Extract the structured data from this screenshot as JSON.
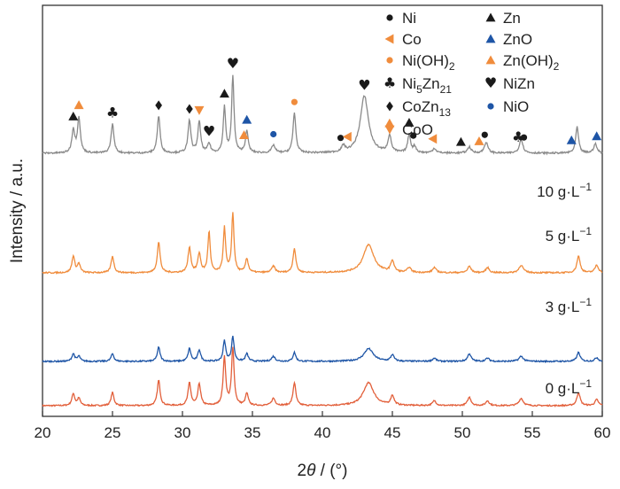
{
  "colors": {
    "black": "#1a1a1a",
    "orange": "#f08c3c",
    "blue": "#1e55a6",
    "gray": "#8a8a8a",
    "red": "#e25f3a"
  },
  "chart_data": {
    "type": "line",
    "title": "",
    "xlabel_parts": [
      "2",
      "θ",
      " / (°)"
    ],
    "ylabel": "Intensity / a.u.",
    "xlim": [
      20,
      60
    ],
    "xticks": [
      "20",
      "25",
      "30",
      "35",
      "40",
      "45",
      "50",
      "55",
      "60"
    ],
    "grid": false,
    "legend": {
      "placement": "top-right",
      "entries": [
        {
          "marker": "circle",
          "color": "#1a1a1a",
          "name": "Ni",
          "sub": ""
        },
        {
          "marker": "triangle-up",
          "color": "#1a1a1a",
          "name": "Zn",
          "sub": ""
        },
        {
          "marker": "triangle-left",
          "color": "#f08c3c",
          "name": "Co",
          "sub": ""
        },
        {
          "marker": "triangle-up",
          "color": "#1e55a6",
          "name": "ZnO",
          "sub": ""
        },
        {
          "marker": "circle",
          "color": "#f08c3c",
          "name": "Ni(OH)",
          "sub": "2"
        },
        {
          "marker": "triangle-up",
          "color": "#f08c3c",
          "name": "Zn(OH)",
          "sub": "2"
        },
        {
          "marker": "club",
          "color": "#1a1a1a",
          "name": "Ni",
          "sub": "5",
          "name2": "Zn",
          "sub2": "21"
        },
        {
          "marker": "heart",
          "color": "#1a1a1a",
          "name": "NiZn",
          "sub": ""
        },
        {
          "marker": "diamond",
          "color": "#1a1a1a",
          "name": "CoZn",
          "sub": "13"
        },
        {
          "marker": "circle",
          "color": "#1e55a6",
          "name": "NiO",
          "sub": ""
        },
        {
          "marker": "triangle-down",
          "color": "#f08c3c",
          "name": "CoO",
          "sub": ""
        }
      ]
    },
    "series": [
      {
        "name": "0 g·L⁻¹",
        "color": "#e25f3a",
        "baseline": 0,
        "peaks": [
          {
            "x": 22.2,
            "h": 20,
            "w": 0.12
          },
          {
            "x": 22.6,
            "h": 12,
            "w": 0.12
          },
          {
            "x": 25.0,
            "h": 22,
            "w": 0.12
          },
          {
            "x": 28.3,
            "h": 42,
            "w": 0.12
          },
          {
            "x": 30.5,
            "h": 38,
            "w": 0.12
          },
          {
            "x": 31.2,
            "h": 36,
            "w": 0.12
          },
          {
            "x": 33.0,
            "h": 80,
            "w": 0.11
          },
          {
            "x": 33.6,
            "h": 94,
            "w": 0.11
          },
          {
            "x": 34.6,
            "h": 20,
            "w": 0.12
          },
          {
            "x": 36.5,
            "h": 12,
            "w": 0.15
          },
          {
            "x": 38.0,
            "h": 38,
            "w": 0.12
          },
          {
            "x": 43.3,
            "h": 38,
            "w": 0.45
          },
          {
            "x": 45.0,
            "h": 16,
            "w": 0.14
          },
          {
            "x": 48.0,
            "h": 8,
            "w": 0.15
          },
          {
            "x": 50.5,
            "h": 14,
            "w": 0.15
          },
          {
            "x": 51.8,
            "h": 8,
            "w": 0.15
          },
          {
            "x": 54.2,
            "h": 12,
            "w": 0.18
          },
          {
            "x": 58.3,
            "h": 22,
            "w": 0.14
          },
          {
            "x": 59.6,
            "h": 10,
            "w": 0.15
          }
        ]
      },
      {
        "name": "3 g·L⁻¹",
        "color": "#1e55a6",
        "baseline": 0,
        "peaks": [
          {
            "x": 22.2,
            "h": 12,
            "w": 0.12
          },
          {
            "x": 22.6,
            "h": 8,
            "w": 0.12
          },
          {
            "x": 25.0,
            "h": 12,
            "w": 0.12
          },
          {
            "x": 28.3,
            "h": 22,
            "w": 0.12
          },
          {
            "x": 30.5,
            "h": 20,
            "w": 0.12
          },
          {
            "x": 31.2,
            "h": 18,
            "w": 0.12
          },
          {
            "x": 33.0,
            "h": 32,
            "w": 0.11
          },
          {
            "x": 33.6,
            "h": 38,
            "w": 0.11
          },
          {
            "x": 34.6,
            "h": 12,
            "w": 0.12
          },
          {
            "x": 36.5,
            "h": 8,
            "w": 0.15
          },
          {
            "x": 38.0,
            "h": 14,
            "w": 0.12
          },
          {
            "x": 43.3,
            "h": 20,
            "w": 0.4
          },
          {
            "x": 45.0,
            "h": 10,
            "w": 0.14
          },
          {
            "x": 48.0,
            "h": 5,
            "w": 0.15
          },
          {
            "x": 50.5,
            "h": 12,
            "w": 0.15
          },
          {
            "x": 51.8,
            "h": 5,
            "w": 0.15
          },
          {
            "x": 54.2,
            "h": 8,
            "w": 0.18
          },
          {
            "x": 58.3,
            "h": 14,
            "w": 0.14
          },
          {
            "x": 59.6,
            "h": 6,
            "w": 0.15
          }
        ]
      },
      {
        "name": "5 g·L⁻¹",
        "color": "#f08c3c",
        "baseline": 0,
        "peaks": [
          {
            "x": 22.2,
            "h": 26,
            "w": 0.12
          },
          {
            "x": 22.6,
            "h": 14,
            "w": 0.12
          },
          {
            "x": 25.0,
            "h": 26,
            "w": 0.12
          },
          {
            "x": 28.3,
            "h": 48,
            "w": 0.12
          },
          {
            "x": 30.5,
            "h": 40,
            "w": 0.12
          },
          {
            "x": 31.2,
            "h": 30,
            "w": 0.12
          },
          {
            "x": 31.9,
            "h": 64,
            "w": 0.1
          },
          {
            "x": 33.0,
            "h": 70,
            "w": 0.1
          },
          {
            "x": 33.6,
            "h": 92,
            "w": 0.1
          },
          {
            "x": 34.6,
            "h": 22,
            "w": 0.12
          },
          {
            "x": 36.5,
            "h": 10,
            "w": 0.15
          },
          {
            "x": 38.0,
            "h": 38,
            "w": 0.12
          },
          {
            "x": 43.3,
            "h": 44,
            "w": 0.45
          },
          {
            "x": 45.0,
            "h": 18,
            "w": 0.14
          },
          {
            "x": 46.2,
            "h": 8,
            "w": 0.14
          },
          {
            "x": 48.0,
            "h": 8,
            "w": 0.15
          },
          {
            "x": 50.5,
            "h": 10,
            "w": 0.15
          },
          {
            "x": 51.8,
            "h": 8,
            "w": 0.15
          },
          {
            "x": 54.2,
            "h": 12,
            "w": 0.18
          },
          {
            "x": 58.3,
            "h": 26,
            "w": 0.14
          },
          {
            "x": 59.6,
            "h": 12,
            "w": 0.15
          }
        ]
      },
      {
        "name": "10 g·L⁻¹",
        "color": "#8a8a8a",
        "baseline": 0,
        "peaks": [
          {
            "x": 22.2,
            "h": 30,
            "w": 0.12
          },
          {
            "x": 22.6,
            "h": 46,
            "w": 0.12
          },
          {
            "x": 25.0,
            "h": 38,
            "w": 0.12
          },
          {
            "x": 28.3,
            "h": 48,
            "w": 0.12
          },
          {
            "x": 30.5,
            "h": 42,
            "w": 0.12
          },
          {
            "x": 31.2,
            "h": 40,
            "w": 0.12
          },
          {
            "x": 31.9,
            "h": 12,
            "w": 0.12
          },
          {
            "x": 33.0,
            "h": 60,
            "w": 0.1
          },
          {
            "x": 33.6,
            "h": 100,
            "w": 0.1
          },
          {
            "x": 34.6,
            "h": 28,
            "w": 0.12
          },
          {
            "x": 36.5,
            "h": 10,
            "w": 0.15
          },
          {
            "x": 38.0,
            "h": 52,
            "w": 0.12
          },
          {
            "x": 41.5,
            "h": 8,
            "w": 0.15
          },
          {
            "x": 43.0,
            "h": 74,
            "w": 0.35
          },
          {
            "x": 44.8,
            "h": 22,
            "w": 0.14
          },
          {
            "x": 46.2,
            "h": 24,
            "w": 0.12
          },
          {
            "x": 46.6,
            "h": 8,
            "w": 0.12
          },
          {
            "x": 48.0,
            "h": 6,
            "w": 0.15
          },
          {
            "x": 50.5,
            "h": 8,
            "w": 0.15
          },
          {
            "x": 51.7,
            "h": 14,
            "w": 0.15
          },
          {
            "x": 54.2,
            "h": 18,
            "w": 0.15
          },
          {
            "x": 58.2,
            "h": 34,
            "w": 0.12
          },
          {
            "x": 59.5,
            "h": 12,
            "w": 0.14
          }
        ]
      }
    ],
    "annotations": [
      {
        "x": 22.2,
        "marker": "triangle-up",
        "color": "#1a1a1a"
      },
      {
        "x": 22.6,
        "marker": "triangle-up",
        "color": "#f08c3c"
      },
      {
        "x": 25.0,
        "marker": "club",
        "color": "#1a1a1a"
      },
      {
        "x": 28.3,
        "marker": "diamond",
        "color": "#1a1a1a"
      },
      {
        "x": 30.5,
        "marker": "diamond",
        "color": "#1a1a1a"
      },
      {
        "x": 31.2,
        "marker": "triangle-down",
        "color": "#f08c3c"
      },
      {
        "x": 31.9,
        "marker": "heart",
        "color": "#1a1a1a"
      },
      {
        "x": 33.0,
        "marker": "triangle-up",
        "color": "#1a1a1a"
      },
      {
        "x": 33.6,
        "marker": "heart",
        "color": "#1a1a1a"
      },
      {
        "x": 34.4,
        "marker": "triangle-up",
        "color": "#f08c3c"
      },
      {
        "x": 34.6,
        "marker": "triangle-up",
        "color": "#1e55a6"
      },
      {
        "x": 36.5,
        "marker": "circle",
        "color": "#1e55a6"
      },
      {
        "x": 38.0,
        "marker": "circle",
        "color": "#f08c3c"
      },
      {
        "x": 41.3,
        "marker": "circle",
        "color": "#1a1a1a"
      },
      {
        "x": 41.8,
        "marker": "triangle-left",
        "color": "#f08c3c"
      },
      {
        "x": 43.0,
        "marker": "heart",
        "color": "#1a1a1a"
      },
      {
        "x": 44.8,
        "marker": "triangle-up",
        "color": "#f08c3c"
      },
      {
        "x": 46.2,
        "marker": "triangle-up",
        "color": "#1a1a1a"
      },
      {
        "x": 46.5,
        "marker": "circle",
        "color": "#1a1a1a"
      },
      {
        "x": 47.9,
        "marker": "triangle-left",
        "color": "#f08c3c"
      },
      {
        "x": 49.9,
        "marker": "triangle-up",
        "color": "#1a1a1a"
      },
      {
        "x": 51.2,
        "marker": "triangle-up",
        "color": "#f08c3c"
      },
      {
        "x": 51.6,
        "marker": "circle",
        "color": "#1a1a1a"
      },
      {
        "x": 54.0,
        "marker": "club",
        "color": "#1a1a1a"
      },
      {
        "x": 54.4,
        "marker": "circle",
        "color": "#1a1a1a"
      },
      {
        "x": 57.8,
        "marker": "triangle-up",
        "color": "#1e55a6"
      },
      {
        "x": 59.6,
        "marker": "triangle-up",
        "color": "#1e55a6"
      }
    ]
  }
}
